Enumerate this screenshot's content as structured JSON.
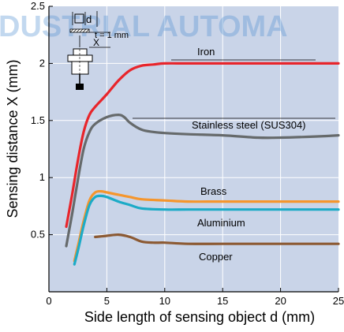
{
  "watermark": "DUSTRIAL AUTOMA",
  "chart_data": {
    "type": "line",
    "xlabel": "Side length of sensing object d (mm)",
    "ylabel": "Sensing distance X (mm)",
    "xlim": [
      0,
      25
    ],
    "ylim": [
      0,
      2.5
    ],
    "x_ticks": [
      0,
      5,
      10,
      15,
      20,
      25
    ],
    "y_ticks": [
      0.5,
      1,
      1.5,
      2,
      2.5
    ],
    "x_tick_labels": [
      "0",
      "5",
      "10",
      "15",
      "20",
      "25"
    ],
    "y_tick_labels": [
      "0.5",
      "1",
      "1.5",
      "2",
      "2.5"
    ],
    "grid": true,
    "legend": "labels next to curves",
    "inset": {
      "d_label": "d",
      "t_label": "t = 1 mm",
      "x_label": "X"
    },
    "series": [
      {
        "name": "Iron",
        "color": "#e8252b",
        "x": [
          1.5,
          2.0,
          2.5,
          3.0,
          3.5,
          4.0,
          5.0,
          6.0,
          7.0,
          8.0,
          9.0,
          10.0,
          12.0,
          15.0,
          20.0,
          25.0
        ],
        "y": [
          0.57,
          0.85,
          1.15,
          1.4,
          1.55,
          1.62,
          1.73,
          1.85,
          1.94,
          1.98,
          1.99,
          2.0,
          2.0,
          2.0,
          2.0,
          2.0
        ]
      },
      {
        "name": "Stainless steel (SUS304)",
        "color": "#666a6b",
        "x": [
          1.5,
          2.0,
          2.5,
          3.0,
          3.5,
          4.0,
          5.0,
          6.0,
          6.5,
          7.0,
          8.0,
          9.0,
          10.0,
          12.0,
          15.0,
          18.0,
          20.0,
          23.0,
          25.0
        ],
        "y": [
          0.4,
          0.68,
          0.98,
          1.25,
          1.4,
          1.47,
          1.53,
          1.55,
          1.53,
          1.48,
          1.42,
          1.4,
          1.39,
          1.38,
          1.37,
          1.35,
          1.35,
          1.36,
          1.37
        ]
      },
      {
        "name": "Brass",
        "color": "#f5962d",
        "x": [
          2.2,
          2.5,
          3.0,
          3.5,
          4.0,
          4.5,
          5.0,
          6.0,
          7.0,
          8.0,
          10.0,
          12.0,
          15.0,
          20.0,
          25.0
        ],
        "y": [
          0.27,
          0.4,
          0.62,
          0.8,
          0.87,
          0.88,
          0.87,
          0.85,
          0.83,
          0.81,
          0.8,
          0.79,
          0.79,
          0.79,
          0.79
        ]
      },
      {
        "name": "Aluminium",
        "color": "#1cabc7",
        "x": [
          2.2,
          2.5,
          3.0,
          3.5,
          4.0,
          4.5,
          5.0,
          6.0,
          7.0,
          8.0,
          10.0,
          12.0,
          15.0,
          20.0,
          25.0
        ],
        "y": [
          0.24,
          0.36,
          0.58,
          0.76,
          0.83,
          0.84,
          0.83,
          0.79,
          0.76,
          0.73,
          0.72,
          0.72,
          0.72,
          0.72,
          0.72
        ]
      },
      {
        "name": "Copper",
        "color": "#8c5a33",
        "x": [
          4.0,
          5.0,
          6.0,
          7.0,
          8.0,
          9.0,
          10.0,
          12.0,
          15.0,
          20.0,
          25.0
        ],
        "y": [
          0.48,
          0.49,
          0.5,
          0.48,
          0.44,
          0.43,
          0.43,
          0.42,
          0.42,
          0.42,
          0.42
        ]
      }
    ]
  }
}
